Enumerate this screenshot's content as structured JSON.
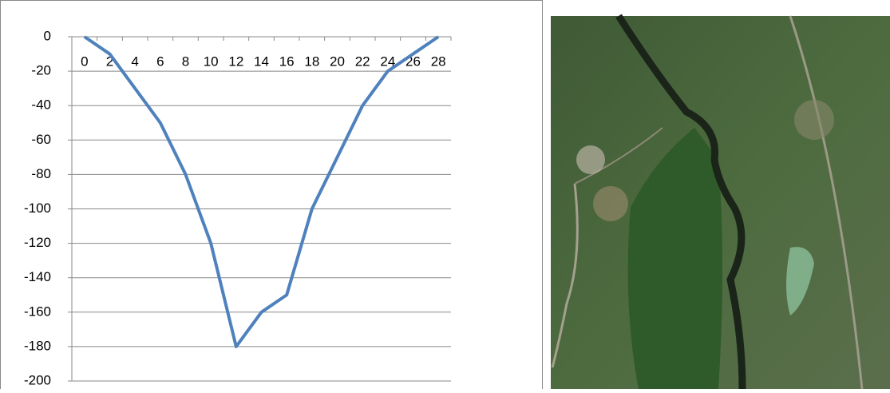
{
  "chart_data": {
    "type": "line",
    "categories": [
      0,
      2,
      4,
      6,
      8,
      10,
      12,
      14,
      16,
      18,
      20,
      22,
      24,
      26,
      28
    ],
    "series": [
      {
        "color": "#4f81bd",
        "values": [
          0,
          -10,
          -30,
          -50,
          -80,
          -120,
          -180,
          -160,
          -150,
          -100,
          -70,
          -40,
          -20,
          -10,
          0
        ]
      }
    ],
    "ylim": [
      -200,
      0
    ],
    "yticks": [
      -200,
      -180,
      -160,
      -140,
      -120,
      -100,
      -80,
      -60,
      -40,
      -20,
      0
    ],
    "grid": true
  }
}
